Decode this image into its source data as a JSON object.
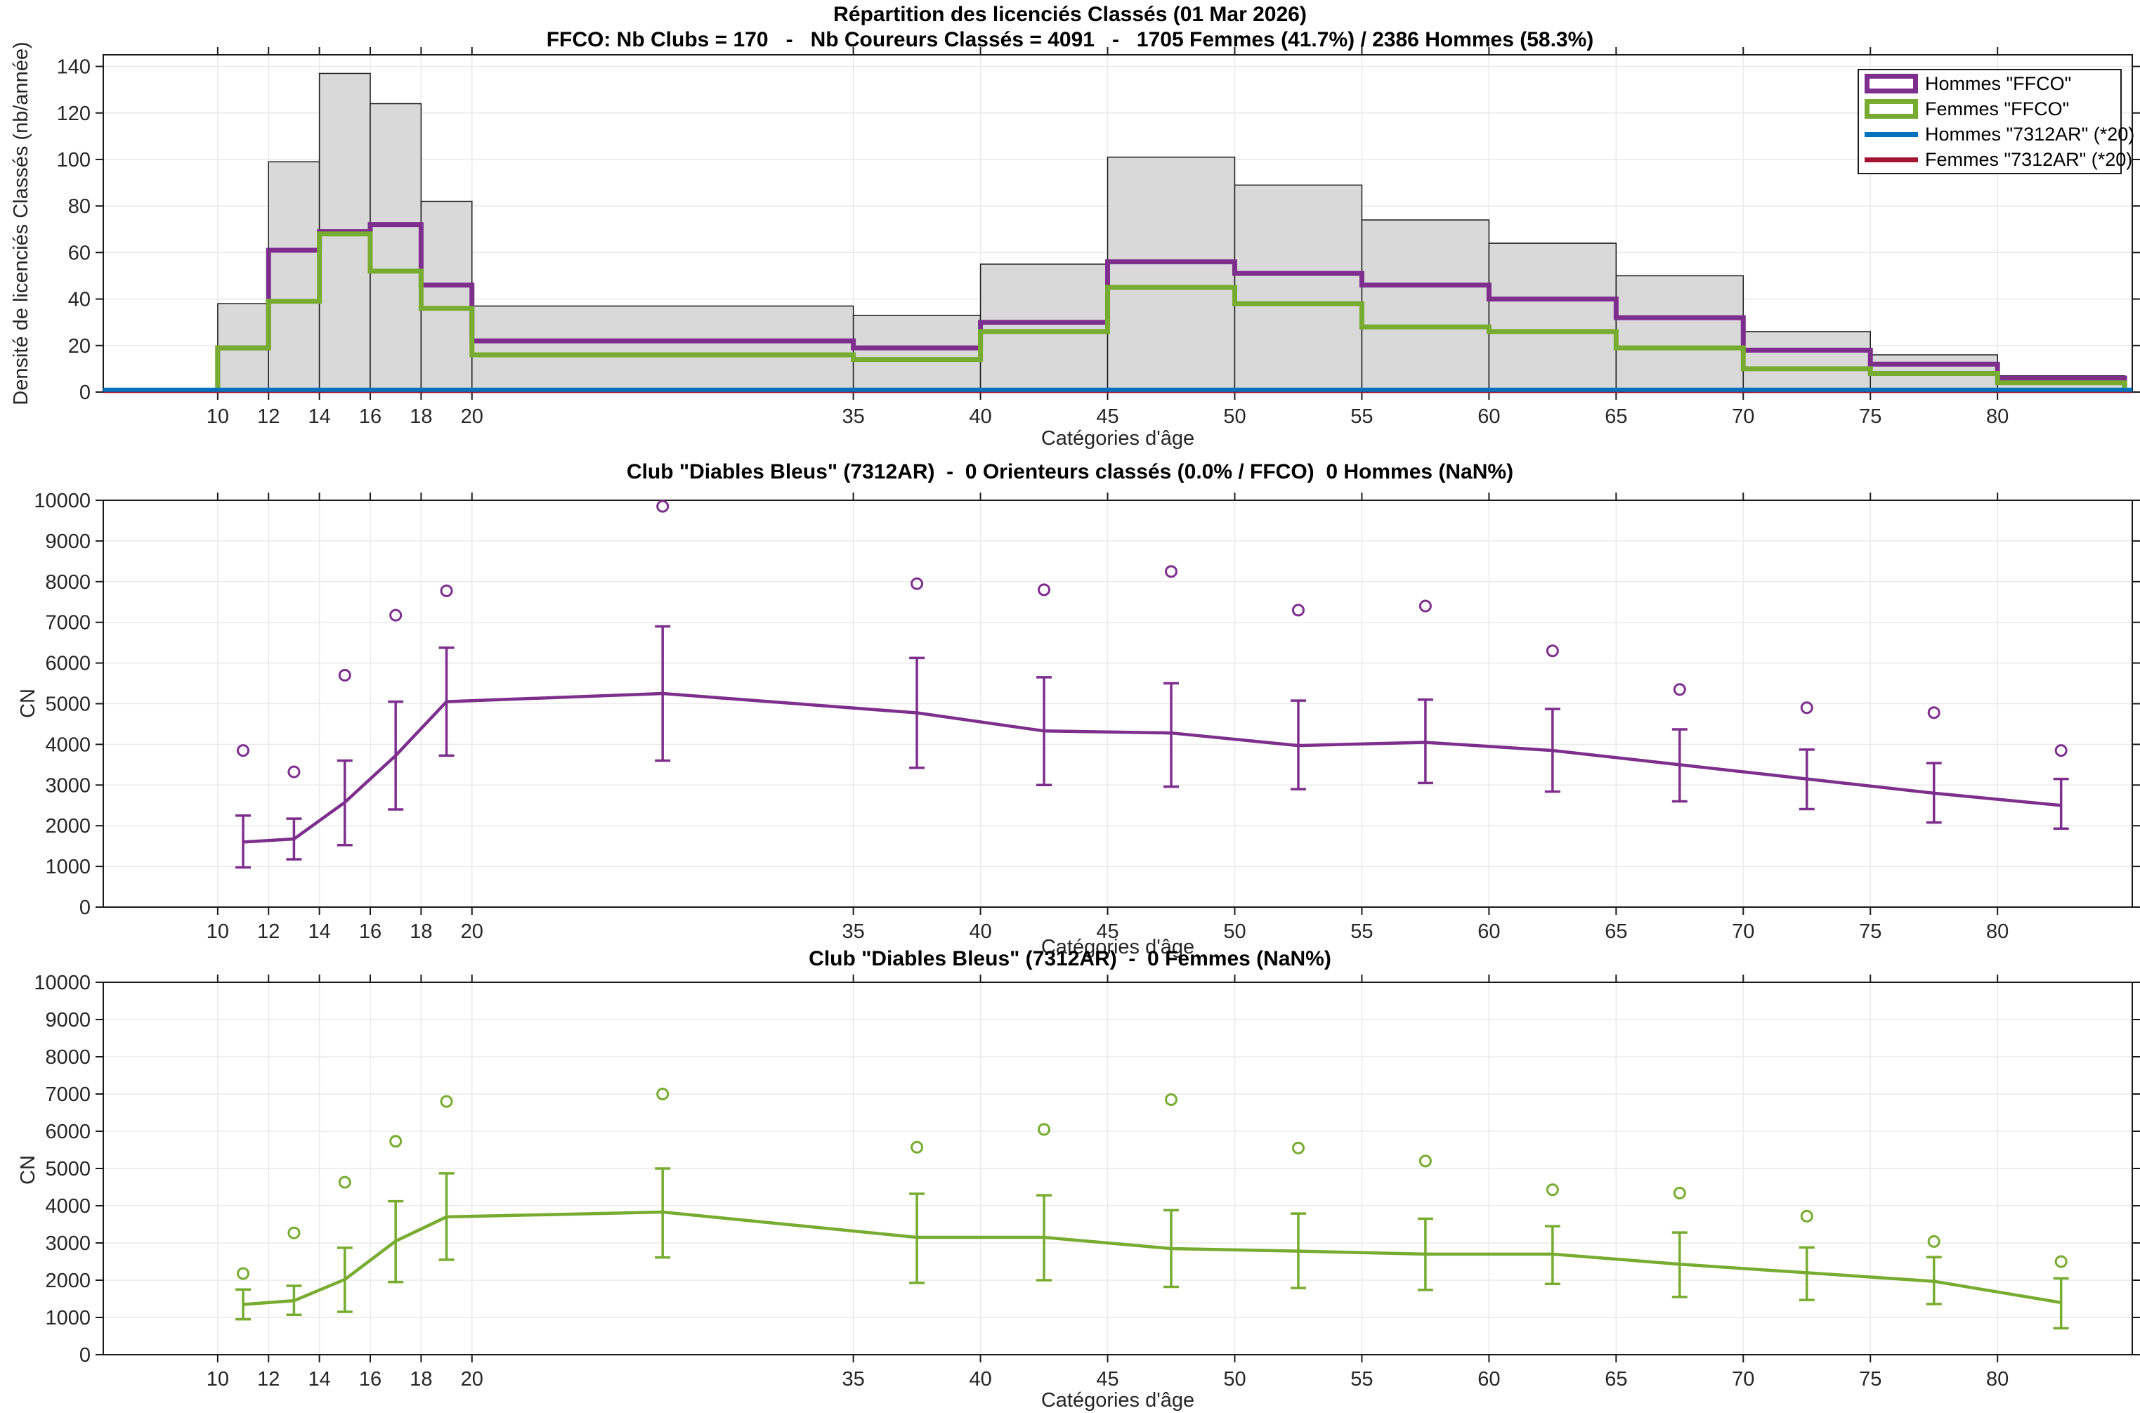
{
  "chart_data": [
    {
      "type": "bar",
      "subtype": "histogram-with-step-outlines",
      "title": "Répartition des licenciés Classés (01 Mar 2026)",
      "subtitle": "FFCO: Nb Clubs = 170   -   Nb Coureurs Classés = 4091   -   1705 Femmes (41.7%) / 2386 Hommes (58.3%)",
      "xlabel": "Catégories d'âge",
      "ylabel": "Densité de licenciés Classés (nb/année)",
      "xlim": [
        5.5,
        85.3
      ],
      "ylim": [
        0,
        145
      ],
      "grid": true,
      "xticks": [
        10,
        12,
        14,
        16,
        18,
        20,
        35,
        40,
        45,
        50,
        55,
        60,
        65,
        70,
        75,
        80
      ],
      "yticks": [
        0,
        20,
        40,
        60,
        80,
        100,
        120,
        140
      ],
      "bin_edges": [
        10,
        12,
        14,
        16,
        18,
        20,
        35,
        40,
        45,
        50,
        55,
        60,
        65,
        70,
        75,
        80,
        85
      ],
      "bars_total_ffco": {
        "name": "Densité totale FFCO",
        "values": [
          38,
          99,
          137,
          124,
          82,
          37,
          33,
          55,
          101,
          89,
          74,
          64,
          50,
          26,
          16,
          7
        ],
        "fill": "#D9D9D9",
        "edge": "#1a1a1a"
      },
      "step_series": [
        {
          "name": "Hommes \"FFCO\"",
          "values": [
            19,
            61,
            69,
            72,
            46,
            22,
            19,
            30,
            56,
            51,
            46,
            40,
            32,
            18,
            12,
            6
          ],
          "color": "#7E2F8E"
        },
        {
          "name": "Femmes \"FFCO\"",
          "values": [
            19,
            39,
            68,
            52,
            36,
            16,
            14,
            26,
            45,
            38,
            28,
            26,
            19,
            10,
            8,
            4
          ],
          "color": "#77AC30"
        }
      ],
      "flat_series": [
        {
          "name": "Femmes \"7312AR\" (*20)",
          "constant_value": 0.5,
          "color": "#A2142F"
        },
        {
          "name": "Hommes \"7312AR\" (*20)",
          "constant_value": 1,
          "color": "#0072BD"
        }
      ],
      "legend_position": "northeast"
    },
    {
      "type": "line",
      "subtype": "errorbar-with-outliers",
      "title": "Club \"Diables Bleus\" (7312AR)  -  0 Orienteurs classés (0.0% / FFCO)  0 Hommes (NaN%)",
      "xlabel": "Catégories d'âge",
      "ylabel": "CN",
      "color": "#7E2F8E",
      "xlim": [
        5.5,
        85.3
      ],
      "ylim": [
        0,
        10000
      ],
      "grid": true,
      "xticks": [
        10,
        12,
        14,
        16,
        18,
        20,
        35,
        40,
        45,
        50,
        55,
        60,
        65,
        70,
        75,
        80
      ],
      "yticks": [
        0,
        1000,
        2000,
        3000,
        4000,
        5000,
        6000,
        7000,
        8000,
        9000,
        10000
      ],
      "x": [
        11,
        13,
        15,
        17,
        19,
        27.5,
        37.5,
        42.5,
        47.5,
        52.5,
        57.5,
        62.5,
        67.5,
        72.5,
        77.5,
        82.5
      ],
      "mean": [
        1600,
        1675,
        2575,
        3725,
        5050,
        5250,
        4775,
        4330,
        4280,
        3970,
        4050,
        3850,
        3500,
        3150,
        2800,
        2500
      ],
      "lower": [
        975,
        1175,
        1525,
        2400,
        3725,
        3600,
        3425,
        3000,
        2960,
        2900,
        3050,
        2840,
        2600,
        2410,
        2080,
        1930
      ],
      "upper": [
        2250,
        2175,
        3600,
        5050,
        6375,
        6900,
        6125,
        5650,
        5500,
        5075,
        5100,
        4870,
        4370,
        3870,
        3540,
        3150
      ],
      "outliers": [
        3850,
        3325,
        5700,
        7175,
        7775,
        9850,
        7950,
        7800,
        8250,
        7300,
        7400,
        6300,
        5350,
        4900,
        4780,
        3850
      ]
    },
    {
      "type": "line",
      "subtype": "errorbar-with-outliers",
      "title": "Club \"Diables Bleus\" (7312AR)  -  0 Femmes (NaN%)",
      "xlabel": "Catégories d'âge",
      "ylabel": "CN",
      "color": "#77AC30",
      "xlim": [
        5.5,
        85.3
      ],
      "ylim": [
        0,
        10000
      ],
      "grid": true,
      "xticks": [
        10,
        12,
        14,
        16,
        18,
        20,
        35,
        40,
        45,
        50,
        55,
        60,
        65,
        70,
        75,
        80
      ],
      "yticks": [
        0,
        1000,
        2000,
        3000,
        4000,
        5000,
        6000,
        7000,
        8000,
        9000,
        10000
      ],
      "x": [
        11,
        13,
        15,
        17,
        19,
        27.5,
        37.5,
        42.5,
        47.5,
        52.5,
        57.5,
        62.5,
        67.5,
        72.5,
        77.5,
        82.5
      ],
      "mean": [
        1350,
        1450,
        2020,
        3050,
        3700,
        3830,
        3150,
        3150,
        2850,
        2780,
        2700,
        2700,
        2430,
        2200,
        1970,
        1400
      ],
      "lower": [
        950,
        1070,
        1150,
        1950,
        2550,
        2610,
        1930,
        2000,
        1820,
        1790,
        1740,
        1900,
        1550,
        1470,
        1360,
        710
      ],
      "upper": [
        1750,
        1850,
        2870,
        4120,
        4870,
        5000,
        4320,
        4280,
        3880,
        3790,
        3650,
        3450,
        3280,
        2880,
        2620,
        2050
      ],
      "outliers": [
        2180,
        3270,
        4630,
        5730,
        6800,
        7000,
        5570,
        6050,
        6850,
        5550,
        5200,
        4430,
        4340,
        3720,
        3040,
        2500
      ]
    }
  ],
  "legend": {
    "items": [
      {
        "label": "Hommes \"FFCO\"",
        "color": "#7E2F8E",
        "swatch": "box"
      },
      {
        "label": "Femmes \"FFCO\"",
        "color": "#77AC30",
        "swatch": "box"
      },
      {
        "label": "Hommes \"7312AR\" (*20)",
        "color": "#0072BD",
        "swatch": "line"
      },
      {
        "label": "Femmes \"7312AR\" (*20)",
        "color": "#A2142F",
        "swatch": "line"
      }
    ]
  },
  "style": {
    "grid_color": "#EAEAEA",
    "axis_color": "#1a1a1a",
    "tick_label_color": "#262626",
    "bar_fill": "#D9D9D9"
  }
}
